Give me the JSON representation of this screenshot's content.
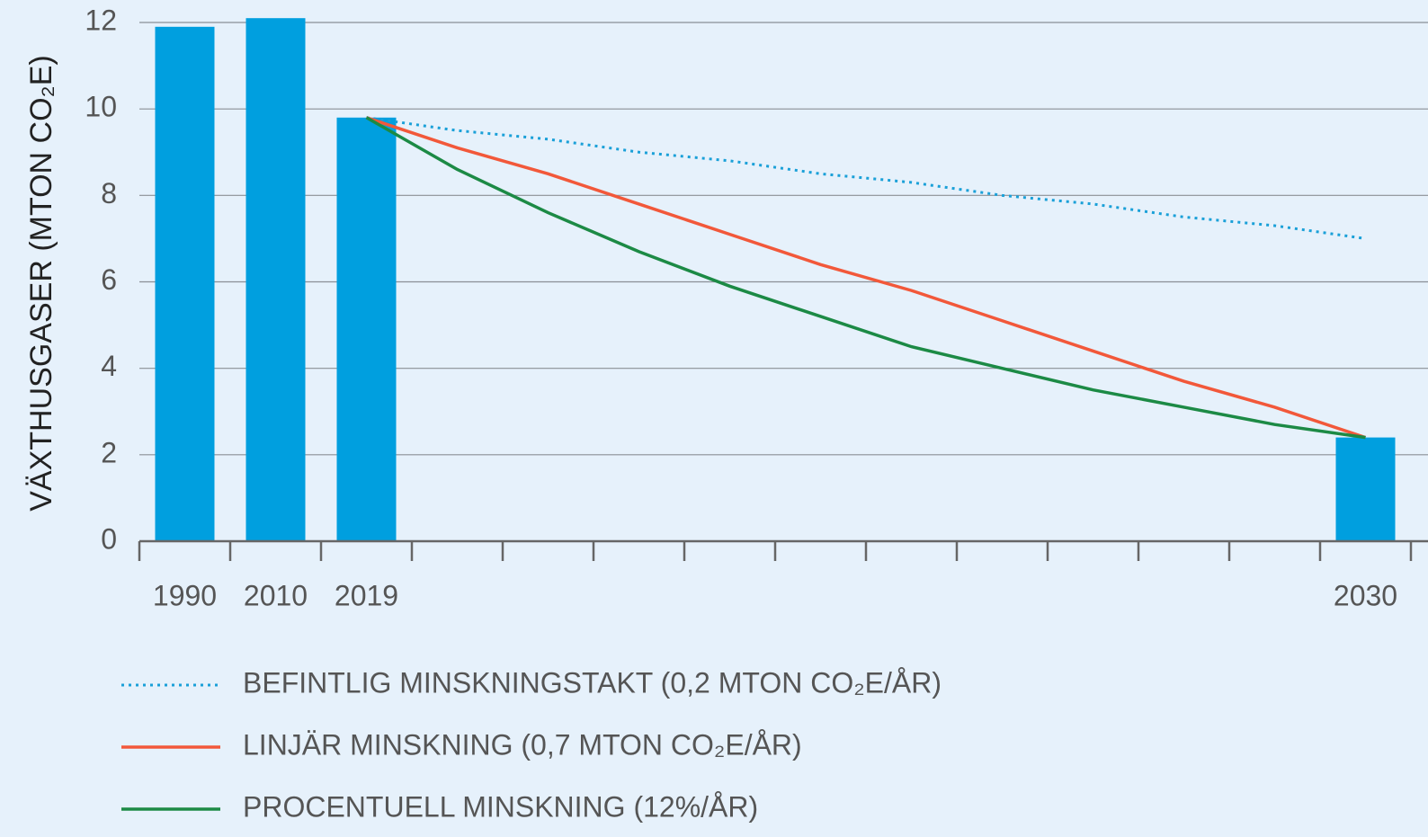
{
  "chart_data": {
    "type": "bar",
    "y_label": "VÄXTHUSGASER (MTON CO₂E)",
    "categories": [
      "1990",
      "2010",
      "2019",
      null,
      null,
      null,
      null,
      null,
      null,
      null,
      null,
      null,
      null,
      "2030"
    ],
    "values": [
      11.9,
      12.1,
      9.8,
      null,
      null,
      null,
      null,
      null,
      null,
      null,
      null,
      null,
      null,
      2.4
    ],
    "color": "#009fdf",
    "series": [
      {
        "name": "BEFINTLIG MINSKNINGSTAKT (0,2 MTON CO₂E/ÅR)",
        "color": "#1aa0d8",
        "style": "dotted",
        "values": [
          null,
          null,
          9.8,
          9.5,
          9.3,
          9.0,
          8.8,
          8.5,
          8.3,
          8.0,
          7.8,
          7.5,
          7.3,
          7.0
        ]
      },
      {
        "name": "LINJÄR MINSKNING (0,7 MTON CO₂E/ÅR)",
        "color": "#f2583a",
        "style": "solid",
        "values": [
          null,
          null,
          9.8,
          9.1,
          8.5,
          7.8,
          7.1,
          6.4,
          5.8,
          5.1,
          4.4,
          3.7,
          3.1,
          2.4
        ]
      },
      {
        "name": "PROCENTUELL MINSKNING (12%/ÅR)",
        "color": "#1c8a45",
        "style": "solid",
        "values": [
          null,
          null,
          9.8,
          8.6,
          7.6,
          6.7,
          5.9,
          5.2,
          4.5,
          4.0,
          3.5,
          3.1,
          2.7,
          2.4
        ]
      }
    ],
    "ylim": [
      0,
      12
    ],
    "yticks": [
      0,
      2,
      4,
      6,
      8,
      10,
      12
    ],
    "grid": true,
    "legend": "bottom"
  }
}
